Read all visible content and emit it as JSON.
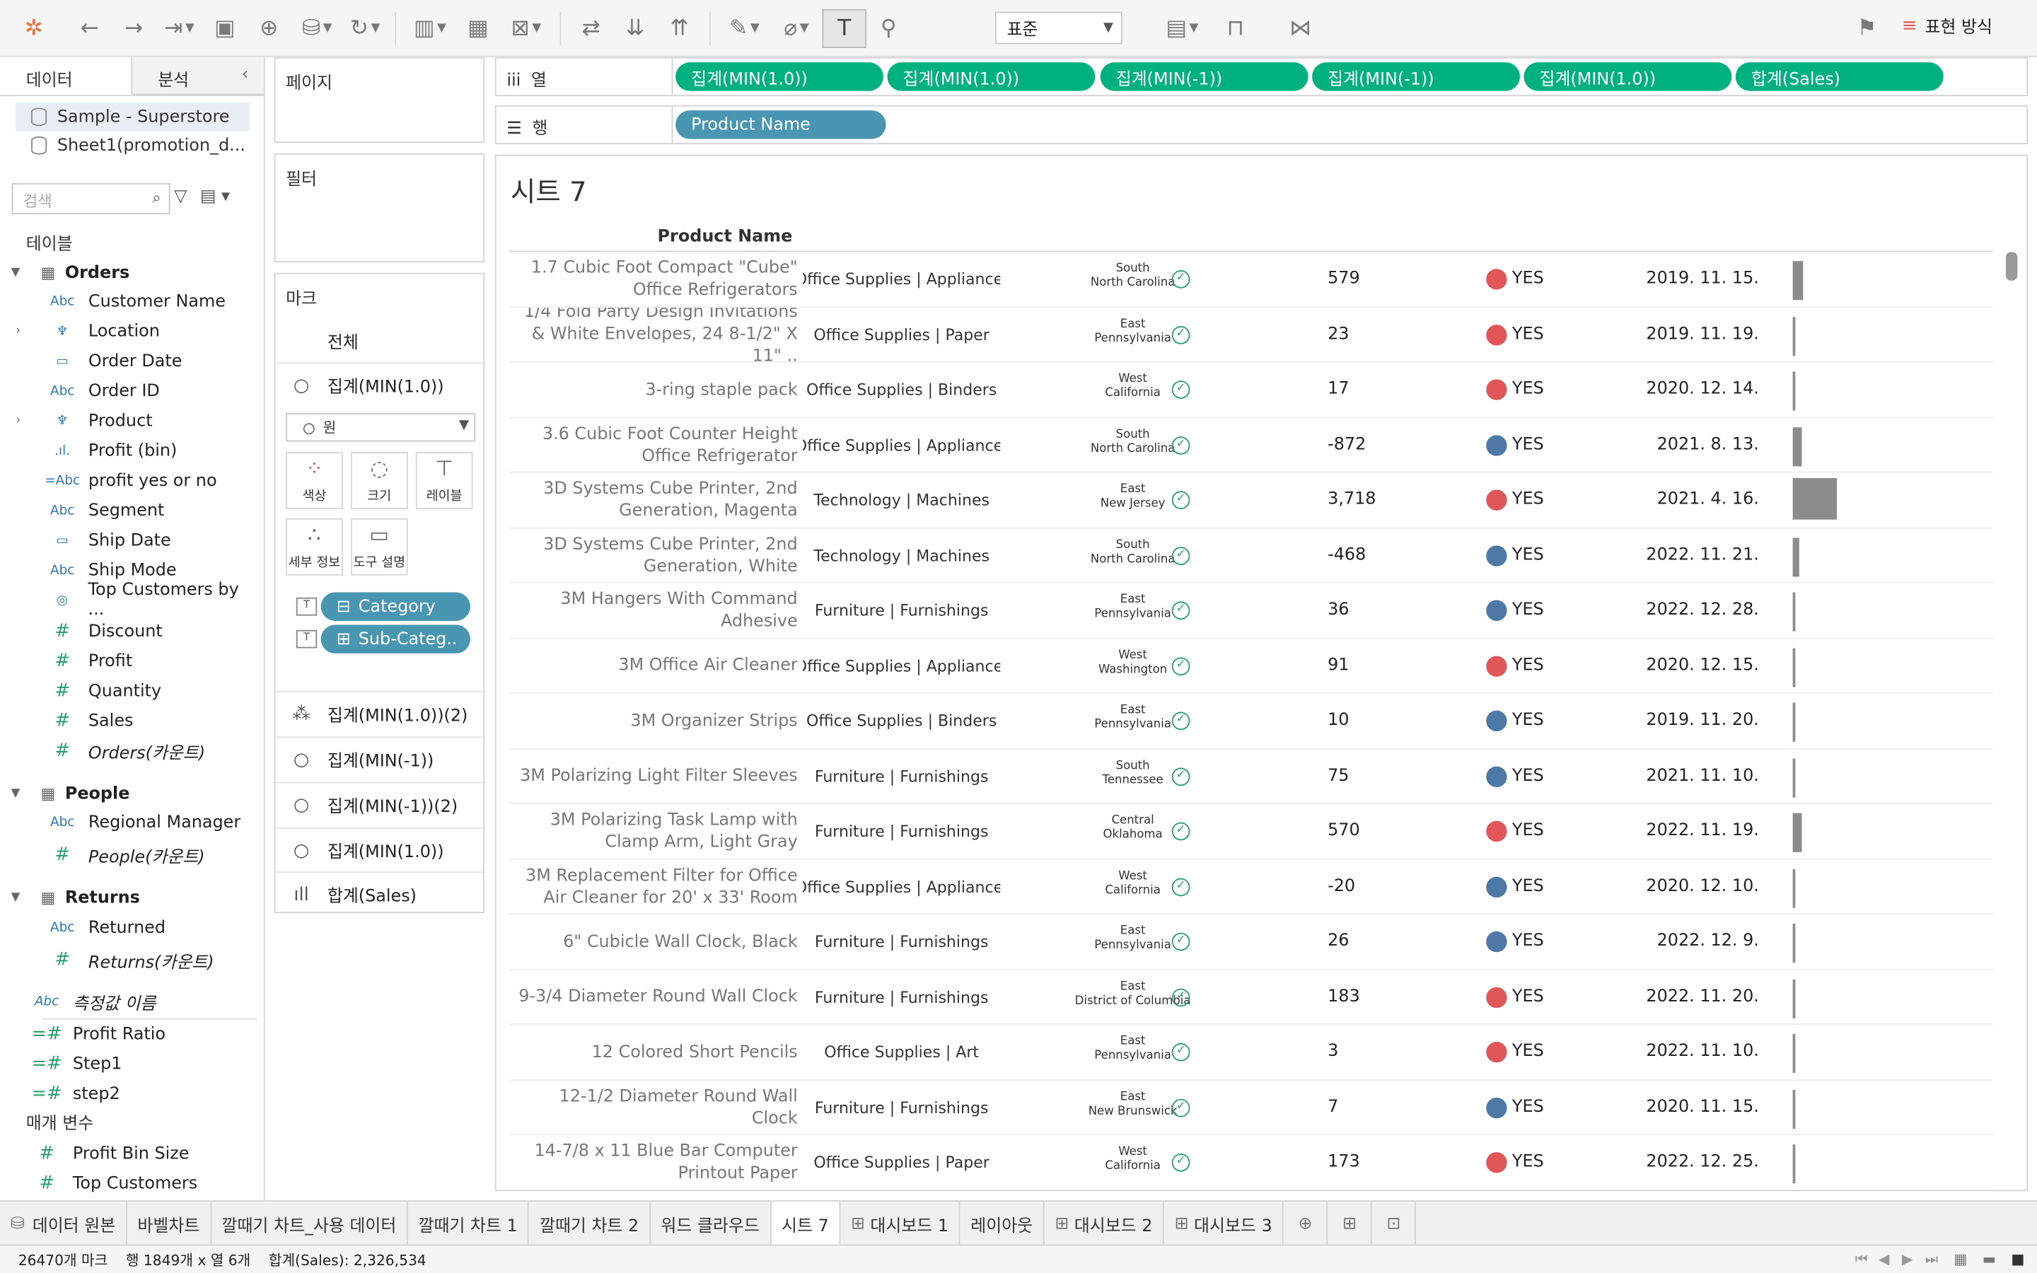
{
  "toolbar": {
    "standard_select": "표준",
    "show_me": "표현 방식"
  },
  "data_pane": {
    "tab_data": "데이터",
    "tab_analysis": "분석",
    "datasources": [
      "Sample - Superstore",
      "Sheet1(promotion_d..."
    ],
    "search_placeholder": "검색",
    "tables_label": "테이블",
    "orders": {
      "name": "Orders",
      "fields": [
        "Customer Name",
        "Location",
        "Order Date",
        "Order ID",
        "Product",
        "Profit (bin)",
        "profit yes or no",
        "Segment",
        "Ship Date",
        "Ship Mode",
        "Top Customers by ...",
        "Discount",
        "Profit",
        "Quantity",
        "Sales",
        "Orders(카운트)"
      ]
    },
    "people": {
      "name": "People",
      "fields": [
        "Regional Manager",
        "People(카운트)"
      ]
    },
    "returns": {
      "name": "Returns",
      "fields": [
        "Returned",
        "Returns(카운트)"
      ]
    },
    "extra_fields": [
      "측정값 이름",
      "Profit Ratio",
      "Step1",
      "step2"
    ],
    "params_label": "매개 변수",
    "params": [
      "Profit Bin Size",
      "Top Customers"
    ]
  },
  "cards": {
    "pages": "페이지",
    "filters": "필터",
    "marks": "마크",
    "marks_all": "전체",
    "mark_rows": [
      "집계(MIN(1.0))",
      "집계(MIN(1.0))(2)",
      "집계(MIN(-1))",
      "집계(MIN(-1))(2)",
      "집계(MIN(1.0))",
      "합계(Sales)"
    ],
    "mark_type": "원",
    "buttons": {
      "color": "색상",
      "size": "크기",
      "label": "레이블",
      "detail": "세부 정보",
      "tooltip": "도구 설명"
    },
    "pills": [
      "Category",
      "Sub-Categ.."
    ]
  },
  "shelves": {
    "columns_label": "열",
    "rows_label": "행",
    "columns": [
      "집계(MIN(1.0))",
      "집계(MIN(1.0))",
      "집계(MIN(-1))",
      "집계(MIN(-1))",
      "집계(MIN(1.0))",
      "합계(Sales)"
    ],
    "rows": [
      "Product Name"
    ]
  },
  "view": {
    "title": "시트 7",
    "column_header": "Product Name",
    "dot_colors": {
      "red": "#e15759",
      "blue": "#4e79a7"
    },
    "rows": [
      {
        "name": "1.7 Cubic Foot Compact \"Cube\" Office Refrigerators",
        "cat": "Office Supplies | Appliance:",
        "region": "South",
        "state": "North Carolina",
        "value": "579",
        "dot": "red",
        "yes": "YES",
        "date": "2019. 11. 15.",
        "sales": 580
      },
      {
        "name": "1/4 Fold Party Design Invitations & White Envelopes, 24 8-1/2\" X 11\" ..",
        "cat": "Office Supplies | Paper",
        "region": "East",
        "state": "Pennsylvania",
        "value": "23",
        "dot": "red",
        "yes": "YES",
        "date": "2019. 11. 19.",
        "sales": 60
      },
      {
        "name": "3-ring staple pack",
        "cat": "Office Supplies | Binders",
        "region": "West",
        "state": "California",
        "value": "17",
        "dot": "red",
        "yes": "YES",
        "date": "2020. 12. 14.",
        "sales": 40
      },
      {
        "name": "3.6 Cubic Foot Counter Height Office Refrigerator",
        "cat": "Office Supplies | Appliance:",
        "region": "South",
        "state": "North Carolina",
        "value": "-872",
        "dot": "blue",
        "yes": "YES",
        "date": "2021. 8. 13.",
        "sales": 520
      },
      {
        "name": "3D Systems Cube Printer, 2nd Generation, Magenta",
        "cat": "Technology | Machines",
        "region": "East",
        "state": "New Jersey",
        "value": "3,718",
        "dot": "red",
        "yes": "YES",
        "date": "2021. 4. 16.",
        "sales": 2600
      },
      {
        "name": "3D Systems Cube Printer, 2nd Generation, White",
        "cat": "Technology | Machines",
        "region": "South",
        "state": "North Carolina",
        "value": "-468",
        "dot": "blue",
        "yes": "YES",
        "date": "2022. 11. 21.",
        "sales": 420
      },
      {
        "name": "3M Hangers With Command Adhesive",
        "cat": "Furniture | Furnishings",
        "region": "East",
        "state": "Pennsylvania",
        "value": "36",
        "dot": "blue",
        "yes": "YES",
        "date": "2022. 12. 28.",
        "sales": 50
      },
      {
        "name": "3M Office Air Cleaner",
        "cat": "Office Supplies | Appliance:",
        "region": "West",
        "state": "Washington",
        "value": "91",
        "dot": "red",
        "yes": "YES",
        "date": "2020. 12. 15.",
        "sales": 90
      },
      {
        "name": "3M Organizer Strips",
        "cat": "Office Supplies | Binders",
        "region": "East",
        "state": "Pennsylvania",
        "value": "10",
        "dot": "blue",
        "yes": "YES",
        "date": "2019. 11. 20.",
        "sales": 30
      },
      {
        "name": "3M Polarizing Light Filter Sleeves",
        "cat": "Furniture | Furnishings",
        "region": "South",
        "state": "Tennessee",
        "value": "75",
        "dot": "blue",
        "yes": "YES",
        "date": "2021. 11. 10.",
        "sales": 60
      },
      {
        "name": "3M Polarizing Task Lamp with Clamp Arm, Light Gray",
        "cat": "Furniture | Furnishings",
        "region": "Central",
        "state": "Oklahoma",
        "value": "570",
        "dot": "red",
        "yes": "YES",
        "date": "2022. 11. 19.",
        "sales": 520
      },
      {
        "name": "3M Replacement Filter for Office Air Cleaner for 20' x 33' Room",
        "cat": "Office Supplies | Appliance:",
        "region": "West",
        "state": "California",
        "value": "-20",
        "dot": "blue",
        "yes": "YES",
        "date": "2020. 12. 10.",
        "sales": 60
      },
      {
        "name": "6\" Cubicle Wall Clock, Black",
        "cat": "Furniture | Furnishings",
        "region": "East",
        "state": "Pennsylvania",
        "value": "26",
        "dot": "blue",
        "yes": "YES",
        "date": "2022. 12. 9.",
        "sales": 40
      },
      {
        "name": "9-3/4 Diameter Round Wall Clock",
        "cat": "Furniture | Furnishings",
        "region": "East",
        "state": "District of Columbia",
        "value": "183",
        "dot": "red",
        "yes": "YES",
        "date": "2022. 11. 20.",
        "sales": 120
      },
      {
        "name": "12 Colored Short Pencils",
        "cat": "Office Supplies | Art",
        "region": "East",
        "state": "Pennsylvania",
        "value": "3",
        "dot": "red",
        "yes": "YES",
        "date": "2022. 11. 10.",
        "sales": 25
      },
      {
        "name": "12-1/2 Diameter Round Wall Clock",
        "cat": "Furniture | Furnishings",
        "region": "East",
        "state": "New Brunswick",
        "value": "7",
        "dot": "blue",
        "yes": "YES",
        "date": "2020. 11. 15.",
        "sales": 110
      },
      {
        "name": "14-7/8 x 11 Blue Bar Computer Printout Paper",
        "cat": "Office Supplies | Paper",
        "region": "West",
        "state": "California",
        "value": "173",
        "dot": "red",
        "yes": "YES",
        "date": "2022. 12. 25.",
        "sales": 110
      }
    ]
  },
  "tabs": [
    "데이터 원본",
    "바벨차트",
    "깔때기 차트_사용 데이터",
    "깔때기 차트 1",
    "깔때기 차트 2",
    "워드 클라우드",
    "시트 7",
    "대시보드 1",
    "레이아웃",
    "대시보드 2",
    "대시보드 3"
  ],
  "active_tab": "시트 7",
  "status": {
    "marks": "26470개 마크",
    "rows_cols": "행 1849개 x 열 6개",
    "sum": "합계(Sales): 2,326,534"
  }
}
